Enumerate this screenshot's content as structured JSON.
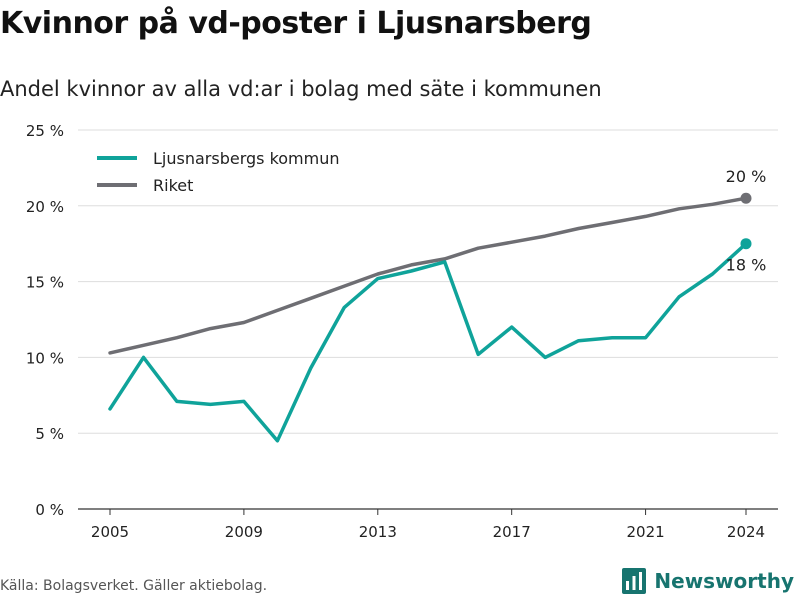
{
  "header": {
    "title": "Kvinnor på vd-poster i Ljusnarsberg",
    "subtitle": "Andel kvinnor av alla vd:ar i bolag med säte i kommunen"
  },
  "footer": {
    "source": "Källa: Bolagsverket. Gäller aktiebolag.",
    "brand": "Newsworthy",
    "logo_icon": "bar-chart-logo-icon"
  },
  "colors": {
    "accent": "#0fa39a",
    "national": "#6e6e73",
    "grid": "#dddddd",
    "brand": "#17746f"
  },
  "chart_data": {
    "type": "line",
    "title": "Kvinnor på vd-poster i Ljusnarsberg",
    "subtitle": "Andel kvinnor av alla vd:ar i bolag med säte i kommunen",
    "xlabel": "",
    "ylabel": "",
    "x": [
      2005,
      2006,
      2007,
      2008,
      2009,
      2010,
      2011,
      2012,
      2013,
      2014,
      2015,
      2016,
      2017,
      2018,
      2019,
      2020,
      2021,
      2022,
      2023,
      2024
    ],
    "xticks": [
      2005,
      2009,
      2013,
      2017,
      2021,
      2024
    ],
    "yticks": [
      0,
      5,
      10,
      15,
      20,
      25
    ],
    "ytick_labels": [
      "0 %",
      "5 %",
      "10 %",
      "15 %",
      "20 %",
      "25 %"
    ],
    "ylim": [
      0,
      25
    ],
    "grid": "horizontal",
    "legend": "top-left",
    "series": [
      {
        "name": "Ljusnarsbergs kommun",
        "color": "#0fa39a",
        "values": [
          6.6,
          10.0,
          7.1,
          6.9,
          7.1,
          4.5,
          9.3,
          13.3,
          15.2,
          15.7,
          16.3,
          10.2,
          12.0,
          10.0,
          11.1,
          11.3,
          11.3,
          14.0,
          15.5,
          17.5
        ],
        "end_label": "18 %"
      },
      {
        "name": "Riket",
        "color": "#6e6e73",
        "values": [
          10.3,
          10.8,
          11.3,
          11.9,
          12.3,
          13.1,
          13.9,
          14.7,
          15.5,
          16.1,
          16.5,
          17.2,
          17.6,
          18.0,
          18.5,
          18.9,
          19.3,
          19.8,
          20.1,
          20.5
        ],
        "end_label": "20 %"
      }
    ]
  }
}
